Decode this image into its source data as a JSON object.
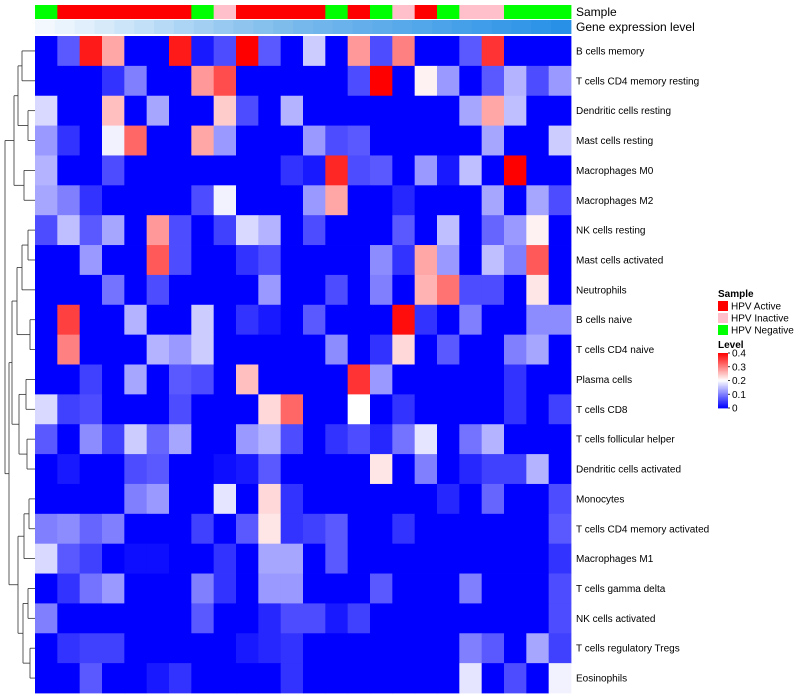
{
  "chart_data": {
    "type": "heatmap",
    "annotation_rows": [
      "Sample",
      "Gene expression level"
    ],
    "color_scale": {
      "min": 0,
      "max": 0.4,
      "low": "#0000ff",
      "mid": "#ffffff",
      "high": "#ff0000",
      "mid_value": 0.2
    },
    "sample_colors": {
      "HPV Active": "#ff0000",
      "HPV Inactive": "#ffc0cb",
      "HPV Negative": "#00ff00"
    },
    "expression_level_colors": [
      "#f2f8fd",
      "#eaf4fc",
      "#e0effb",
      "#d6eafa",
      "#cce5f9",
      "#c2e0f8",
      "#b7daf6",
      "#acd4f4",
      "#a2cff2",
      "#98c9f0",
      "#8ec4ee",
      "#86c0ed",
      "#7ebcec",
      "#76b8eb",
      "#70b5eb",
      "#6ab2eb",
      "#64afeb",
      "#5eacea",
      "#58a9ea",
      "#52a6ea",
      "#4ca3e9",
      "#46a0e9",
      "#409de9",
      "#3a9ae8",
      "#3497e8",
      "#2e94e8",
      "#2891e7"
    ],
    "samples": [
      "HPV Negative",
      "HPV Active",
      "HPV Active",
      "HPV Active",
      "HPV Active",
      "HPV Active",
      "HPV Active",
      "HPV Negative",
      "HPV Inactive",
      "HPV Active",
      "HPV Active",
      "HPV Active",
      "HPV Active",
      "HPV Negative",
      "HPV Active",
      "HPV Negative",
      "HPV Inactive",
      "HPV Active",
      "HPV Negative",
      "HPV Inactive",
      "HPV Inactive",
      "HPV Negative",
      "HPV Negative",
      "HPV Negative"
    ],
    "rows": [
      "B cells memory",
      "T cells CD4 memory resting",
      "Dendritic cells resting",
      "Mast cells resting",
      "Macrophages M0",
      "Macrophages M2",
      "NK cells resting",
      "Mast cells activated",
      "Neutrophils",
      "B cells naive",
      "T cells CD4 naive",
      "Plasma cells",
      "T cells CD8",
      "T cells follicular helper",
      "Dendritic cells activated",
      "Monocytes",
      "T cells CD4 memory activated",
      "Macrophages M1",
      "T cells gamma delta",
      "NK cells activated",
      "T cells regulatory  Tregs",
      "Eosinophils"
    ],
    "values": [
      [
        0.0,
        0.07,
        0.38,
        0.27,
        0.0,
        0.0,
        0.38,
        0.02,
        0.06,
        0.4,
        0.07,
        0.0,
        0.16,
        0.0,
        0.28,
        0.06,
        0.3,
        0.0,
        0.0,
        0.07,
        0.36,
        0.0,
        0.0,
        0.0
      ],
      [
        0.0,
        0.0,
        0.0,
        0.04,
        0.1,
        0.0,
        0.0,
        0.28,
        0.34,
        0.0,
        0.0,
        0.0,
        0.0,
        0.0,
        0.06,
        0.4,
        0.0,
        0.21,
        0.12,
        0.0,
        0.07,
        0.14,
        0.06,
        0.12
      ],
      [
        0.17,
        0.0,
        0.0,
        0.25,
        0.0,
        0.13,
        0.0,
        0.0,
        0.24,
        0.06,
        0.0,
        0.14,
        0.0,
        0.0,
        0.0,
        0.0,
        0.0,
        0.0,
        0.0,
        0.13,
        0.27,
        0.15,
        0.0,
        0.0
      ],
      [
        0.12,
        0.04,
        0.0,
        0.19,
        0.32,
        0.0,
        0.0,
        0.27,
        0.12,
        0.0,
        0.0,
        0.0,
        0.12,
        0.06,
        0.07,
        0.0,
        0.0,
        0.0,
        0.0,
        0.0,
        0.13,
        0.0,
        0.0,
        0.16
      ],
      [
        0.14,
        0.0,
        0.0,
        0.06,
        0.0,
        0.0,
        0.0,
        0.0,
        0.0,
        0.0,
        0.0,
        0.04,
        0.02,
        0.37,
        0.06,
        0.07,
        0.0,
        0.12,
        0.02,
        0.15,
        0.0,
        0.4,
        0.0,
        0.0
      ],
      [
        0.13,
        0.1,
        0.04,
        0.0,
        0.0,
        0.0,
        0.0,
        0.06,
        0.19,
        0.0,
        0.0,
        0.0,
        0.12,
        0.27,
        0.0,
        0.0,
        0.03,
        0.0,
        0.0,
        0.0,
        0.13,
        0.0,
        0.13,
        0.06
      ],
      [
        0.06,
        0.15,
        0.07,
        0.13,
        0.0,
        0.28,
        0.06,
        0.0,
        0.05,
        0.17,
        0.14,
        0.0,
        0.06,
        0.0,
        0.0,
        0.0,
        0.07,
        0.0,
        0.15,
        0.0,
        0.08,
        0.12,
        0.21,
        0.0
      ],
      [
        0.0,
        0.0,
        0.12,
        0.0,
        0.0,
        0.33,
        0.06,
        0.0,
        0.0,
        0.04,
        0.06,
        0.0,
        0.0,
        0.0,
        0.0,
        0.11,
        0.04,
        0.27,
        0.12,
        0.0,
        0.15,
        0.1,
        0.33,
        0.0
      ],
      [
        0.0,
        0.0,
        0.0,
        0.09,
        0.0,
        0.06,
        0.0,
        0.0,
        0.0,
        0.0,
        0.12,
        0.0,
        0.0,
        0.06,
        0.0,
        0.1,
        0.0,
        0.26,
        0.31,
        0.06,
        0.06,
        0.0,
        0.22,
        0.0
      ],
      [
        0.0,
        0.35,
        0.0,
        0.0,
        0.14,
        0.0,
        0.0,
        0.16,
        0.0,
        0.04,
        0.02,
        0.0,
        0.07,
        0.0,
        0.0,
        0.0,
        0.39,
        0.04,
        0.0,
        0.1,
        0.0,
        0.0,
        0.11,
        0.11
      ],
      [
        0.0,
        0.3,
        0.0,
        0.0,
        0.0,
        0.14,
        0.12,
        0.16,
        0.0,
        0.0,
        0.0,
        0.0,
        0.0,
        0.11,
        0.0,
        0.04,
        0.23,
        0.0,
        0.07,
        0.0,
        0.0,
        0.1,
        0.13,
        0.0
      ],
      [
        0.0,
        0.0,
        0.05,
        0.0,
        0.13,
        0.0,
        0.07,
        0.06,
        0.0,
        0.25,
        0.0,
        0.0,
        0.0,
        0.0,
        0.36,
        0.12,
        0.0,
        0.0,
        0.0,
        0.0,
        0.0,
        0.04,
        0.0,
        0.0
      ],
      [
        0.17,
        0.05,
        0.06,
        0.0,
        0.0,
        0.0,
        0.06,
        0.0,
        0.0,
        0.0,
        0.23,
        0.32,
        0.0,
        0.0,
        0.2,
        0.0,
        0.04,
        0.0,
        0.0,
        0.0,
        0.0,
        0.04,
        0.0,
        0.05
      ],
      [
        0.07,
        0.0,
        0.11,
        0.05,
        0.16,
        0.08,
        0.13,
        0.0,
        0.0,
        0.12,
        0.14,
        0.06,
        0.0,
        0.04,
        0.06,
        0.03,
        0.09,
        0.18,
        0.0,
        0.09,
        0.14,
        0.0,
        0.0,
        0.0
      ],
      [
        0.0,
        0.02,
        0.0,
        0.0,
        0.06,
        0.07,
        0.0,
        0.0,
        0.01,
        0.02,
        0.07,
        0.0,
        0.0,
        0.0,
        0.0,
        0.22,
        0.0,
        0.1,
        0.0,
        0.03,
        0.05,
        0.05,
        0.14,
        0.0
      ],
      [
        0.0,
        0.0,
        0.0,
        0.0,
        0.1,
        0.12,
        0.0,
        0.0,
        0.18,
        0.0,
        0.23,
        0.04,
        0.0,
        0.0,
        0.0,
        0.0,
        0.0,
        0.0,
        0.03,
        0.0,
        0.08,
        0.0,
        0.0,
        0.06
      ],
      [
        0.1,
        0.11,
        0.08,
        0.1,
        0.0,
        0.0,
        0.0,
        0.05,
        0.0,
        0.07,
        0.22,
        0.04,
        0.05,
        0.07,
        0.0,
        0.0,
        0.04,
        0.0,
        0.0,
        0.0,
        0.0,
        0.0,
        0.0,
        0.07
      ],
      [
        0.17,
        0.07,
        0.05,
        0.0,
        0.01,
        0.01,
        0.0,
        0.0,
        0.04,
        0.0,
        0.13,
        0.13,
        0.0,
        0.07,
        0.0,
        0.0,
        0.0,
        0.0,
        0.0,
        0.0,
        0.0,
        0.0,
        0.0,
        0.04
      ],
      [
        0.0,
        0.04,
        0.09,
        0.12,
        0.0,
        0.0,
        0.0,
        0.1,
        0.04,
        0.0,
        0.12,
        0.12,
        0.0,
        0.0,
        0.0,
        0.07,
        0.0,
        0.0,
        0.0,
        0.1,
        0.0,
        0.0,
        0.0,
        0.06
      ],
      [
        0.1,
        0.0,
        0.0,
        0.0,
        0.0,
        0.0,
        0.0,
        0.07,
        0.0,
        0.0,
        0.03,
        0.06,
        0.06,
        0.02,
        0.05,
        0.0,
        0.0,
        0.0,
        0.0,
        0.0,
        0.0,
        0.0,
        0.0,
        0.06
      ],
      [
        0.0,
        0.04,
        0.05,
        0.05,
        0.0,
        0.0,
        0.0,
        0.0,
        0.0,
        0.02,
        0.03,
        0.04,
        0.0,
        0.0,
        0.0,
        0.0,
        0.0,
        0.0,
        0.0,
        0.1,
        0.07,
        0.0,
        0.13,
        0.05
      ],
      [
        0.0,
        0.0,
        0.07,
        0.0,
        0.0,
        0.02,
        0.04,
        0.0,
        0.0,
        0.0,
        0.0,
        0.04,
        0.0,
        0.0,
        0.0,
        0.0,
        0.0,
        0.0,
        0.0,
        0.18,
        0.0,
        0.06,
        0.0,
        0.19
      ]
    ],
    "legends": [
      {
        "title": "Sample",
        "entries": [
          "HPV Active",
          "HPV Inactive",
          "HPV Negative"
        ]
      },
      {
        "title": "Level",
        "ticks": [
          "0.4",
          "0.3",
          "0.2",
          "0.1",
          "0"
        ]
      }
    ]
  }
}
